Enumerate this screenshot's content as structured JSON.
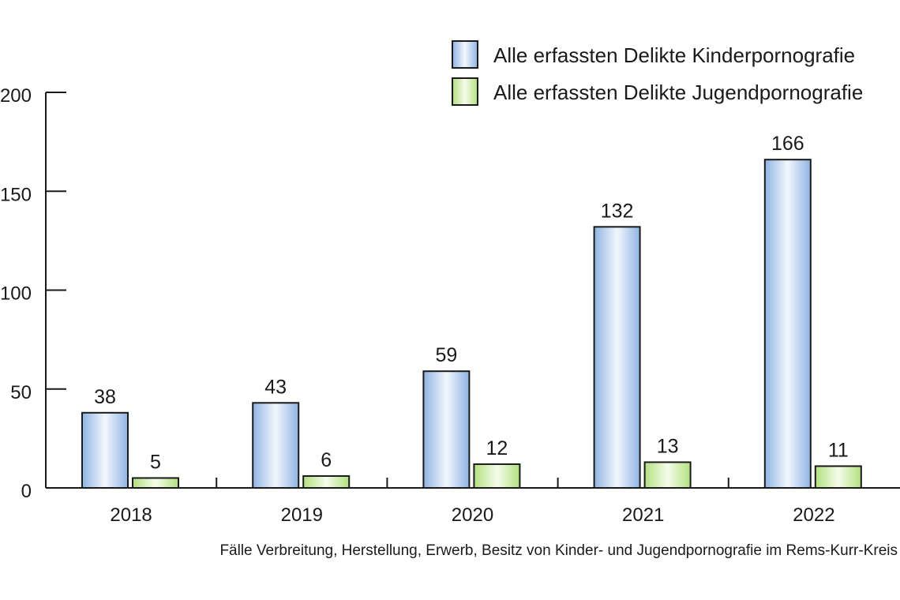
{
  "chart_data": {
    "type": "bar",
    "categories": [
      "2018",
      "2019",
      "2020",
      "2021",
      "2022"
    ],
    "series": [
      {
        "name": "Alle erfassten Delikte Kinderpornografie",
        "values": [
          38,
          43,
          59,
          132,
          166
        ],
        "color": "#a9c8ec"
      },
      {
        "name": "Alle erfassten Delikte Jugendpornografie",
        "values": [
          5,
          6,
          12,
          13,
          11
        ],
        "color": "#c6ea9c"
      }
    ],
    "title": "",
    "caption": "Fälle Verbreitung, Herstellung, Erwerb, Besitz von Kinder- und Jugendpornografie im Rems-Kurr-Kreis",
    "xlabel": "",
    "ylabel": "",
    "ylim": [
      0,
      200
    ],
    "yticks": [
      "0",
      "50",
      "100",
      "150",
      "200"
    ],
    "grid": false,
    "legend_position": "top-right",
    "data_labels": true
  }
}
